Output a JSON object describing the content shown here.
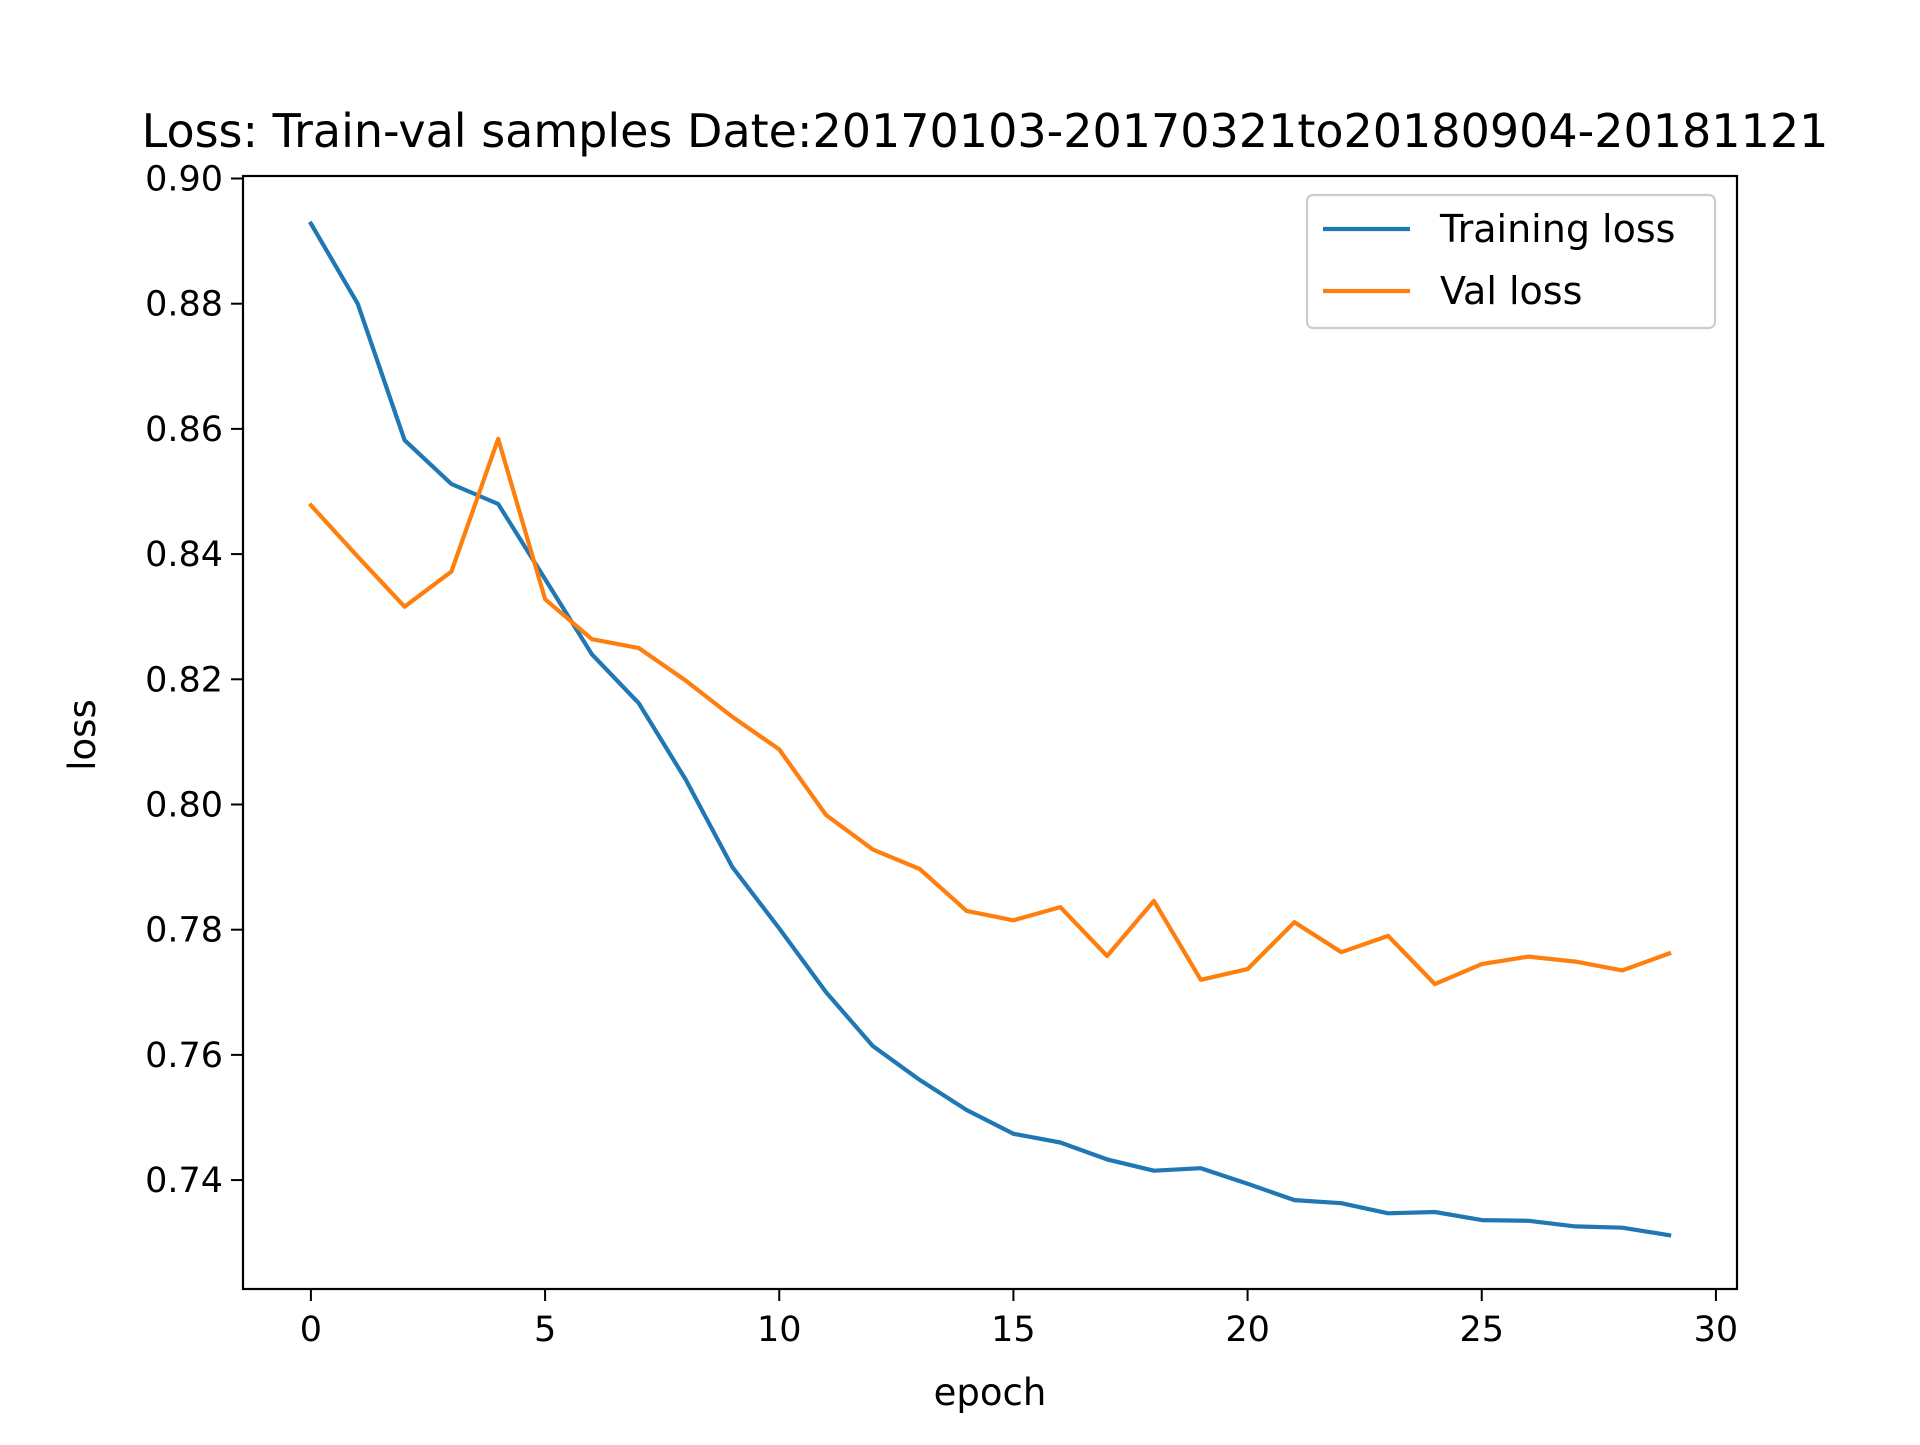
{
  "chart_data": {
    "type": "line",
    "title": "Loss: Train-val samples Date:20170103-20170321to20180904-20181121",
    "xlabel": "epoch",
    "ylabel": "loss",
    "xlim": [
      -1.45,
      30.45
    ],
    "ylim": [
      0.7226,
      0.9004
    ],
    "x_ticks": [
      0,
      5,
      10,
      15,
      20,
      25,
      30
    ],
    "x_tick_labels": [
      "0",
      "5",
      "10",
      "15",
      "20",
      "25",
      "30"
    ],
    "y_ticks": [
      0.74,
      0.76,
      0.78,
      0.8,
      0.82,
      0.84,
      0.86,
      0.88,
      0.9
    ],
    "y_tick_labels": [
      "0.74",
      "0.76",
      "0.78",
      "0.80",
      "0.82",
      "0.84",
      "0.86",
      "0.88",
      "0.90"
    ],
    "grid": false,
    "legend_position": "top-right",
    "x": [
      0,
      1,
      2,
      3,
      4,
      5,
      6,
      7,
      8,
      9,
      10,
      11,
      12,
      13,
      14,
      15,
      16,
      17,
      18,
      19,
      20,
      21,
      22,
      23,
      24,
      25,
      26,
      27,
      28,
      29
    ],
    "series": [
      {
        "name": "Training loss",
        "color": "#1f77b4",
        "values": [
          0.8928,
          0.88,
          0.8582,
          0.8512,
          0.848,
          0.836,
          0.824,
          0.8162,
          0.804,
          0.79,
          0.7802,
          0.77,
          0.7614,
          0.756,
          0.7512,
          0.7474,
          0.746,
          0.7433,
          0.7415,
          0.7419,
          0.7394,
          0.7368,
          0.7363,
          0.7347,
          0.7349,
          0.7336,
          0.7335,
          0.7326,
          0.7324,
          0.7312
        ]
      },
      {
        "name": "Val loss",
        "color": "#ff7f0e",
        "values": [
          0.8478,
          0.8396,
          0.8316,
          0.8372,
          0.8584,
          0.8328,
          0.8264,
          0.825,
          0.8198,
          0.814,
          0.8088,
          0.7983,
          0.7928,
          0.7897,
          0.783,
          0.7815,
          0.7836,
          0.7758,
          0.7846,
          0.772,
          0.7737,
          0.7812,
          0.7764,
          0.779,
          0.7713,
          0.7745,
          0.7757,
          0.7749,
          0.7735,
          0.7762
        ]
      }
    ]
  }
}
